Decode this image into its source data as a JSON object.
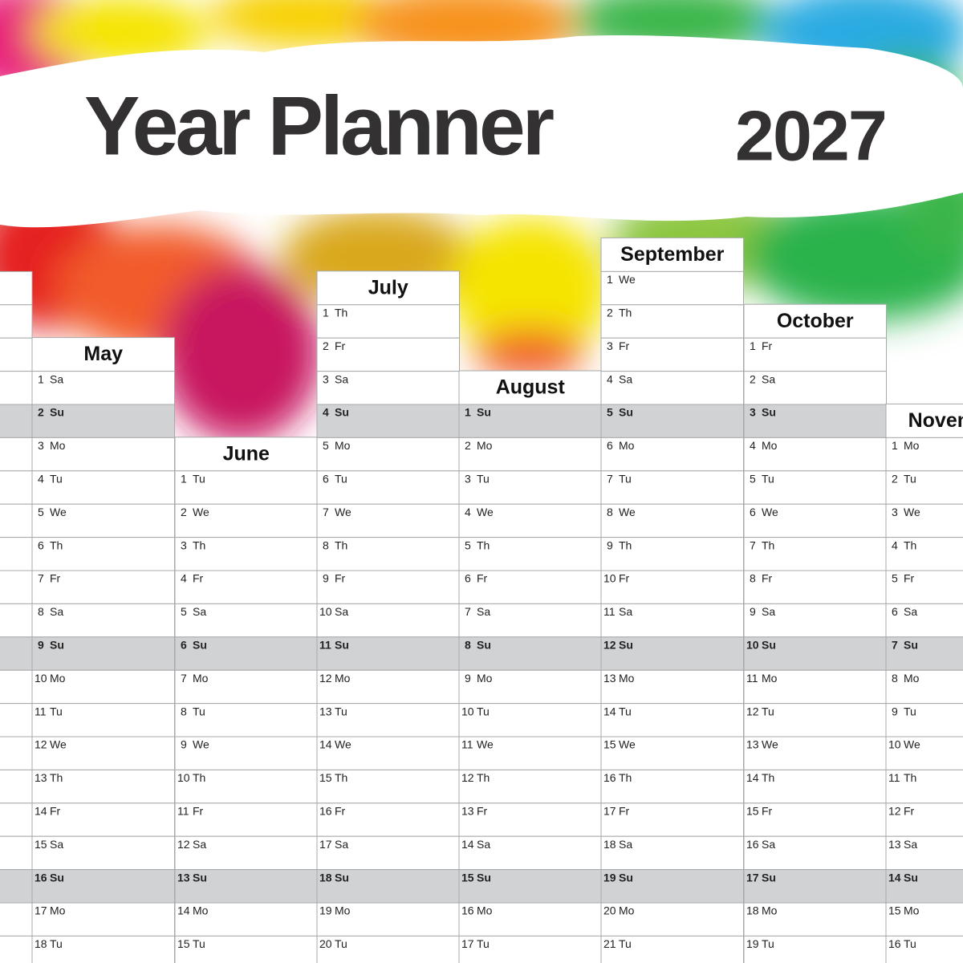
{
  "header": {
    "title": "Year Planner",
    "year": "2027"
  },
  "months": [
    {
      "name": "May",
      "days": [
        [
          1,
          "Sa"
        ],
        [
          2,
          "Su"
        ],
        [
          3,
          "Mo"
        ],
        [
          4,
          "Tu"
        ],
        [
          5,
          "We"
        ],
        [
          6,
          "Th"
        ],
        [
          7,
          "Fr"
        ],
        [
          8,
          "Sa"
        ],
        [
          9,
          "Su"
        ],
        [
          10,
          "Mo"
        ],
        [
          11,
          "Tu"
        ],
        [
          12,
          "We"
        ],
        [
          13,
          "Th"
        ],
        [
          14,
          "Fr"
        ],
        [
          15,
          "Sa"
        ],
        [
          16,
          "Su"
        ],
        [
          17,
          "Mo"
        ],
        [
          18,
          "Tu"
        ]
      ]
    },
    {
      "name": "June",
      "days": [
        [
          1,
          "Tu"
        ],
        [
          2,
          "We"
        ],
        [
          3,
          "Th"
        ],
        [
          4,
          "Fr"
        ],
        [
          5,
          "Sa"
        ],
        [
          6,
          "Su"
        ],
        [
          7,
          "Mo"
        ],
        [
          8,
          "Tu"
        ],
        [
          9,
          "We"
        ],
        [
          10,
          "Th"
        ],
        [
          11,
          "Fr"
        ],
        [
          12,
          "Sa"
        ],
        [
          13,
          "Su"
        ],
        [
          14,
          "Mo"
        ],
        [
          15,
          "Tu"
        ]
      ]
    },
    {
      "name": "July",
      "days": [
        [
          1,
          "Th"
        ],
        [
          2,
          "Fr"
        ],
        [
          3,
          "Sa"
        ],
        [
          4,
          "Su"
        ],
        [
          5,
          "Mo"
        ],
        [
          6,
          "Tu"
        ],
        [
          7,
          "We"
        ],
        [
          8,
          "Th"
        ],
        [
          9,
          "Fr"
        ],
        [
          10,
          "Sa"
        ],
        [
          11,
          "Su"
        ],
        [
          12,
          "Mo"
        ],
        [
          13,
          "Tu"
        ],
        [
          14,
          "We"
        ],
        [
          15,
          "Th"
        ],
        [
          16,
          "Fr"
        ],
        [
          17,
          "Sa"
        ],
        [
          18,
          "Su"
        ],
        [
          19,
          "Mo"
        ],
        [
          20,
          "Tu"
        ]
      ]
    },
    {
      "name": "August",
      "days": [
        [
          1,
          "Su"
        ],
        [
          2,
          "Mo"
        ],
        [
          3,
          "Tu"
        ],
        [
          4,
          "We"
        ],
        [
          5,
          "Th"
        ],
        [
          6,
          "Fr"
        ],
        [
          7,
          "Sa"
        ],
        [
          8,
          "Su"
        ],
        [
          9,
          "Mo"
        ],
        [
          10,
          "Tu"
        ],
        [
          11,
          "We"
        ],
        [
          12,
          "Th"
        ],
        [
          13,
          "Fr"
        ],
        [
          14,
          "Sa"
        ],
        [
          15,
          "Su"
        ],
        [
          16,
          "Mo"
        ],
        [
          17,
          "Tu"
        ]
      ]
    },
    {
      "name": "September",
      "days": [
        [
          1,
          "We"
        ],
        [
          2,
          "Th"
        ],
        [
          3,
          "Fr"
        ],
        [
          4,
          "Sa"
        ],
        [
          5,
          "Su"
        ],
        [
          6,
          "Mo"
        ],
        [
          7,
          "Tu"
        ],
        [
          8,
          "We"
        ],
        [
          9,
          "Th"
        ],
        [
          10,
          "Fr"
        ],
        [
          11,
          "Sa"
        ],
        [
          12,
          "Su"
        ],
        [
          13,
          "Mo"
        ],
        [
          14,
          "Tu"
        ],
        [
          15,
          "We"
        ],
        [
          16,
          "Th"
        ],
        [
          17,
          "Fr"
        ],
        [
          18,
          "Sa"
        ],
        [
          19,
          "Su"
        ],
        [
          20,
          "Mo"
        ],
        [
          21,
          "Tu"
        ]
      ]
    },
    {
      "name": "October",
      "days": [
        [
          1,
          "Fr"
        ],
        [
          2,
          "Sa"
        ],
        [
          3,
          "Su"
        ],
        [
          4,
          "Mo"
        ],
        [
          5,
          "Tu"
        ],
        [
          6,
          "We"
        ],
        [
          7,
          "Th"
        ],
        [
          8,
          "Fr"
        ],
        [
          9,
          "Sa"
        ],
        [
          10,
          "Su"
        ],
        [
          11,
          "Mo"
        ],
        [
          12,
          "Tu"
        ],
        [
          13,
          "We"
        ],
        [
          14,
          "Th"
        ],
        [
          15,
          "Fr"
        ],
        [
          16,
          "Sa"
        ],
        [
          17,
          "Su"
        ],
        [
          18,
          "Mo"
        ],
        [
          19,
          "Tu"
        ]
      ]
    },
    {
      "name": "November",
      "days": [
        [
          1,
          "Mo"
        ],
        [
          2,
          "Tu"
        ],
        [
          3,
          "We"
        ],
        [
          4,
          "Th"
        ],
        [
          5,
          "Fr"
        ],
        [
          6,
          "Sa"
        ],
        [
          7,
          "Su"
        ],
        [
          8,
          "Mo"
        ],
        [
          9,
          "Tu"
        ],
        [
          10,
          "We"
        ],
        [
          11,
          "Th"
        ],
        [
          12,
          "Fr"
        ],
        [
          13,
          "Sa"
        ],
        [
          14,
          "Su"
        ],
        [
          15,
          "Mo"
        ],
        [
          16,
          "Tu"
        ]
      ]
    }
  ]
}
